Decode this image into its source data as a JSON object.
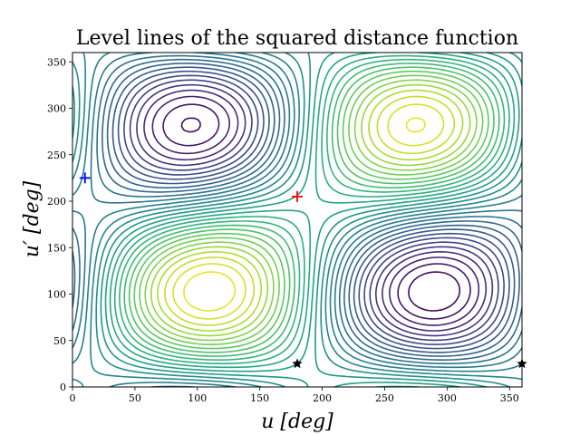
{
  "chart_data": {
    "type": "contour",
    "title": "Level lines of the squared distance function",
    "xlabel": "u [deg]",
    "ylabel": "u′ [deg]",
    "xlim": [
      0,
      360
    ],
    "ylim": [
      0,
      360
    ],
    "xticks": [
      0,
      50,
      100,
      150,
      200,
      250,
      300,
      350
    ],
    "yticks": [
      0,
      50,
      100,
      150,
      200,
      250,
      300,
      350
    ],
    "grid": false,
    "colormap": "viridis",
    "maximum_region_center": [
      180,
      205
    ],
    "markers": [
      {
        "symbol": "plus",
        "color": "#0000ff",
        "x": 10,
        "y": 225
      },
      {
        "symbol": "plus",
        "color": "#ff0000",
        "x": 180,
        "y": 205
      },
      {
        "symbol": "star",
        "color": "#000000",
        "x": 180,
        "y": 25
      },
      {
        "symbol": "star",
        "color": "#000000",
        "x": 360,
        "y": 25
      }
    ]
  }
}
